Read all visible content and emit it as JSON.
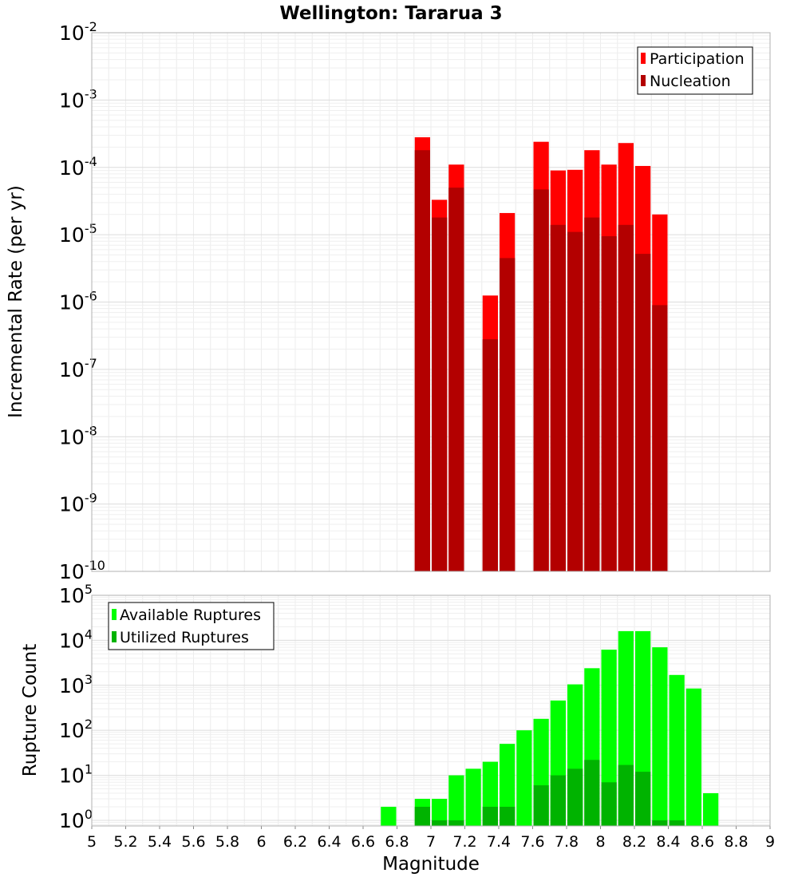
{
  "chart_data": [
    {
      "type": "bar",
      "title": "Wellington: Tararua 3",
      "xlabel": "",
      "ylabel": "Incremental Rate (per yr)",
      "yscale": "log",
      "xlim": [
        5,
        9
      ],
      "ylim": [
        1e-10,
        0.01
      ],
      "y_tick_exponents": [
        -10,
        -9,
        -8,
        -7,
        -6,
        -5,
        -4,
        -3,
        -2
      ],
      "grid": true,
      "legend": "top-right",
      "bin_width": 0.1,
      "x": [
        6.95,
        7.05,
        7.15,
        7.35,
        7.45,
        7.65,
        7.75,
        7.85,
        7.95,
        8.05,
        8.15,
        8.25,
        8.35
      ],
      "series": [
        {
          "name": "Participation",
          "color": "#ff0000",
          "values": [
            0.00028,
            3.3e-05,
            0.00011,
            1.25e-06,
            2.1e-05,
            0.00024,
            9e-05,
            9.2e-05,
            0.00018,
            0.00011,
            0.00023,
            0.000105,
            2e-05
          ]
        },
        {
          "name": "Nucleation",
          "color": "#b30000",
          "values": [
            0.00018,
            1.8e-05,
            5e-05,
            2.8e-07,
            4.5e-06,
            4.7e-05,
            1.4e-05,
            1.1e-05,
            1.8e-05,
            9.5e-06,
            1.4e-05,
            5.2e-06,
            9e-07
          ]
        }
      ]
    },
    {
      "type": "bar",
      "title": "",
      "xlabel": "Magnitude",
      "ylabel": "Rupture Count",
      "yscale": "log",
      "xlim": [
        5,
        9
      ],
      "ylim": [
        0.75,
        100000.0
      ],
      "y_tick_exponents": [
        0,
        1,
        2,
        3,
        4,
        5
      ],
      "x_ticks": [
        "5",
        "5.2",
        "5.4",
        "5.6",
        "5.8",
        "6",
        "6.2",
        "6.4",
        "6.6",
        "6.8",
        "7",
        "7.2",
        "7.4",
        "7.6",
        "7.8",
        "8",
        "8.2",
        "8.4",
        "8.6",
        "8.8",
        "9"
      ],
      "grid": true,
      "legend": "top-left",
      "bin_width": 0.1,
      "x": [
        6.75,
        6.95,
        7.05,
        7.15,
        7.25,
        7.35,
        7.45,
        7.55,
        7.65,
        7.75,
        7.85,
        7.95,
        8.05,
        8.15,
        8.25,
        8.35,
        8.45,
        8.55,
        8.65
      ],
      "series": [
        {
          "name": "Available Ruptures",
          "color": "#00ff00",
          "values": [
            2,
            3,
            3,
            10,
            14,
            20,
            50,
            100,
            180,
            460,
            1050,
            2400,
            6200,
            16000,
            16000,
            7000,
            1700,
            850,
            4
          ]
        },
        {
          "name": "Utilized Ruptures",
          "color": "#00b300",
          "values": [
            0,
            2,
            1,
            1,
            0,
            2,
            2,
            0,
            6,
            10,
            14,
            22,
            7,
            17,
            12,
            1,
            1,
            0,
            0
          ]
        }
      ]
    }
  ]
}
